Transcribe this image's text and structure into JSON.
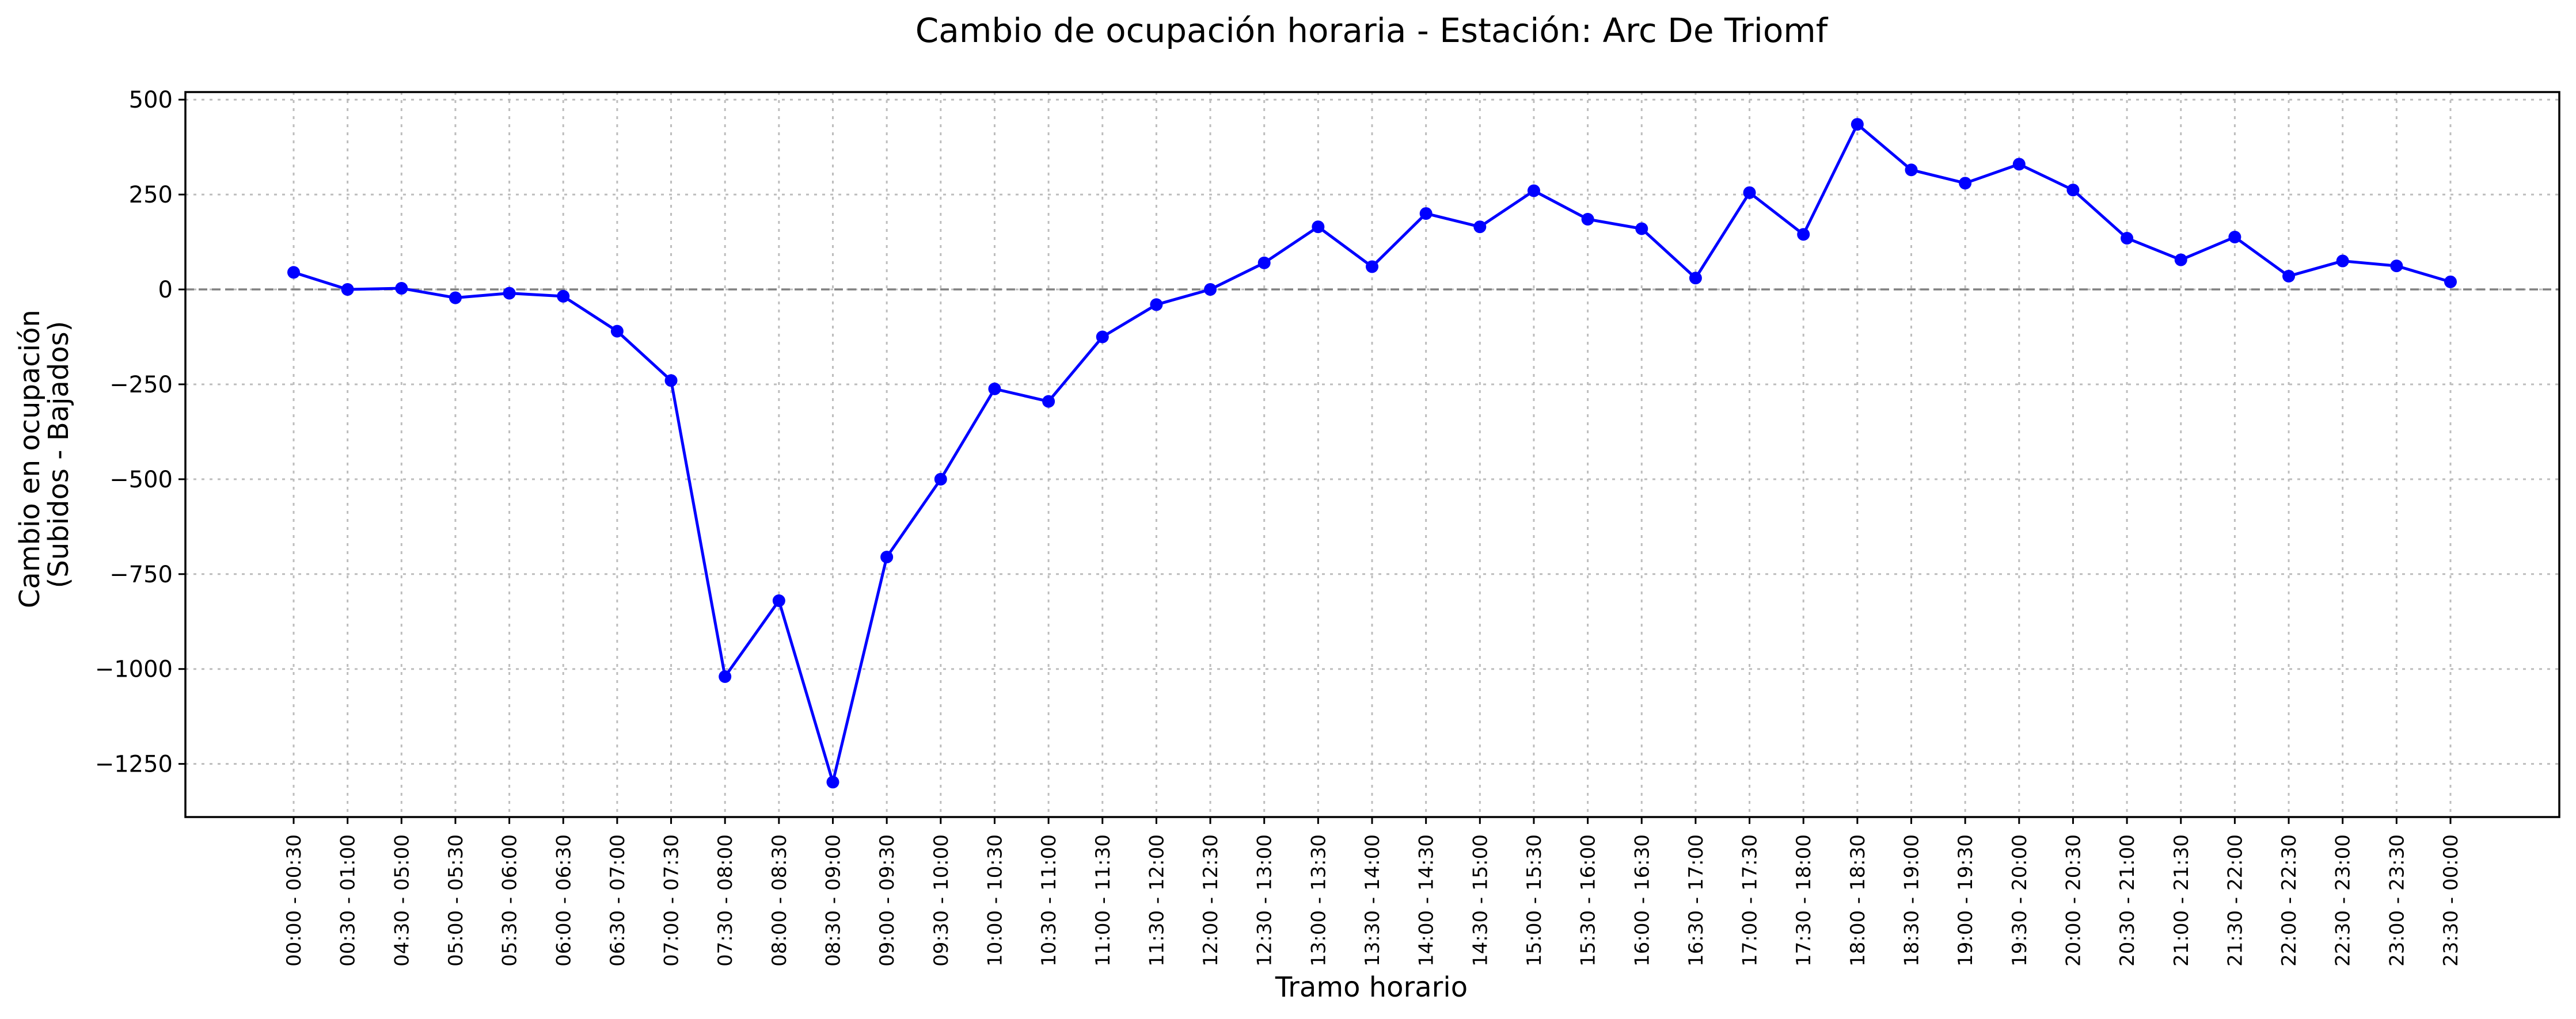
{
  "chart_data": {
    "type": "line",
    "title": "Cambio de ocupación horaria - Estación: Arc De Triomf",
    "xlabel": "Tramo horario",
    "ylabel_lines": [
      "Cambio en ocupación",
      "(Subidos - Bajados)"
    ],
    "categories": [
      "00:00 - 00:30",
      "00:30 - 01:00",
      "04:30 - 05:00",
      "05:00 - 05:30",
      "05:30 - 06:00",
      "06:00 - 06:30",
      "06:30 - 07:00",
      "07:00 - 07:30",
      "07:30 - 08:00",
      "08:00 - 08:30",
      "08:30 - 09:00",
      "09:00 - 09:30",
      "09:30 - 10:00",
      "10:00 - 10:30",
      "10:30 - 11:00",
      "11:00 - 11:30",
      "11:30 - 12:00",
      "12:00 - 12:30",
      "12:30 - 13:00",
      "13:00 - 13:30",
      "13:30 - 14:00",
      "14:00 - 14:30",
      "14:30 - 15:00",
      "15:00 - 15:30",
      "15:30 - 16:00",
      "16:00 - 16:30",
      "16:30 - 17:00",
      "17:00 - 17:30",
      "17:30 - 18:00",
      "18:00 - 18:30",
      "18:30 - 19:00",
      "19:00 - 19:30",
      "19:30 - 20:00",
      "20:00 - 20:30",
      "20:30 - 21:00",
      "21:00 - 21:30",
      "21:30 - 22:00",
      "22:00 - 22:30",
      "22:30 - 23:00",
      "23:00 - 23:30",
      "23:30 - 00:00"
    ],
    "series": [
      {
        "color": "#0000ff",
        "marker": "circle",
        "values": [
          45,
          0,
          3,
          -22,
          -10,
          -18,
          -110,
          -240,
          -1020,
          -820,
          -1298,
          -705,
          -500,
          -262,
          -295,
          -125,
          -40,
          0,
          70,
          165,
          60,
          200,
          165,
          260,
          185,
          160,
          30,
          255,
          145,
          435,
          315,
          280,
          330,
          262,
          135,
          78,
          138,
          35,
          75,
          62,
          20
        ]
      }
    ],
    "yticks": [
      500,
      250,
      0,
      -250,
      -500,
      -750,
      -1000,
      -1250
    ],
    "ytick_labels": [
      "500",
      "250",
      "0",
      "−250",
      "−500",
      "−750",
      "−1000",
      "−1250"
    ],
    "ylim": [
      -1390,
      520
    ],
    "reference_line": {
      "y": 0,
      "color": "#808080",
      "style": "dashed"
    },
    "grid": true,
    "grid_style": "dotted",
    "legend": false
  }
}
